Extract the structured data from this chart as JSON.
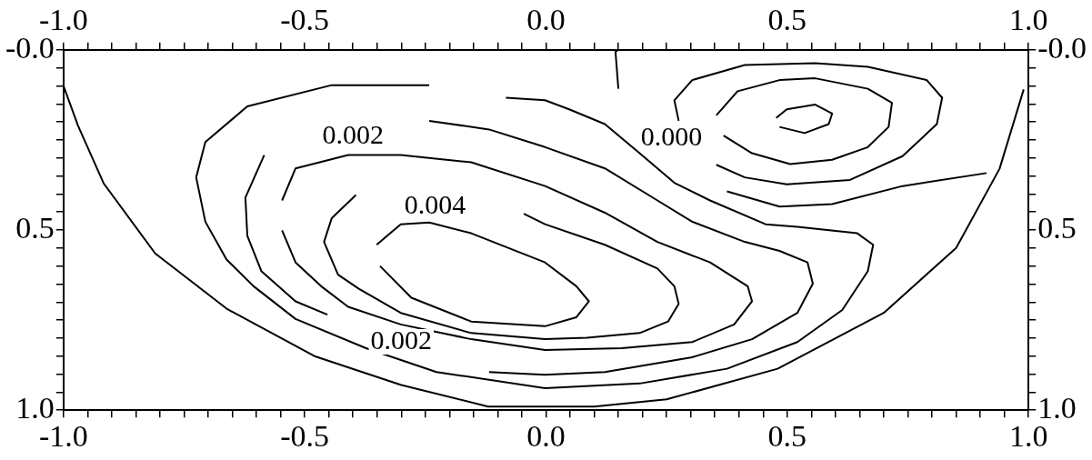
{
  "chart_data": {
    "type": "line",
    "marker": "none",
    "grid": false,
    "legend": false,
    "xlim": [
      -1,
      1
    ],
    "ylim": [
      1,
      0
    ],
    "x2lim": [
      -1,
      1
    ],
    "y2lim": [
      1,
      0
    ],
    "xticks": [
      {
        "value": -1,
        "label": "-1.0"
      },
      {
        "value": -0.95,
        "label": null
      },
      {
        "value": -0.9,
        "label": null
      },
      {
        "value": -0.85,
        "label": null
      },
      {
        "value": -0.8,
        "label": null
      },
      {
        "value": -0.75,
        "label": null
      },
      {
        "value": -0.7,
        "label": null
      },
      {
        "value": -0.65,
        "label": null
      },
      {
        "value": -0.6,
        "label": null
      },
      {
        "value": -0.55,
        "label": null
      },
      -0.5,
      {
        "value": -0.45,
        "label": null
      },
      {
        "value": -0.4,
        "label": null
      },
      {
        "value": -0.35,
        "label": null
      },
      {
        "value": -0.3,
        "label": null
      },
      {
        "value": -0.25,
        "label": null
      },
      {
        "value": -0.2,
        "label": null
      },
      {
        "value": -0.15,
        "label": null
      },
      {
        "value": -0.1,
        "label": null
      },
      {
        "value": -0.05,
        "label": null
      },
      {
        "value": 0,
        "label": "0.0"
      },
      {
        "value": 0.05,
        "label": null
      },
      {
        "value": 0.1,
        "label": null
      },
      {
        "value": 0.15,
        "label": null
      },
      {
        "value": 0.2,
        "label": null
      },
      {
        "value": 0.25,
        "label": null
      },
      {
        "value": 0.3,
        "label": null
      },
      {
        "value": 0.35,
        "label": null
      },
      {
        "value": 0.4,
        "label": null
      },
      {
        "value": 0.45,
        "label": null
      },
      0.5,
      {
        "value": 0.55,
        "label": null
      },
      {
        "value": 0.6,
        "label": null
      },
      {
        "value": 0.65,
        "label": null
      },
      {
        "value": 0.7,
        "label": null
      },
      {
        "value": 0.75,
        "label": null
      },
      {
        "value": 0.8,
        "label": null
      },
      {
        "value": 0.85,
        "label": null
      },
      {
        "value": 0.9,
        "label": null
      },
      {
        "value": 0.95,
        "label": null
      },
      {
        "value": 1,
        "label": "1.0"
      }
    ],
    "x2ticks": [
      {
        "value": -1,
        "label": "-1.0"
      },
      {
        "value": -0.95,
        "label": null
      },
      {
        "value": -0.9,
        "label": null
      },
      {
        "value": -0.85,
        "label": null
      },
      {
        "value": -0.8,
        "label": null
      },
      {
        "value": -0.75,
        "label": null
      },
      {
        "value": -0.7,
        "label": null
      },
      {
        "value": -0.65,
        "label": null
      },
      {
        "value": -0.6,
        "label": null
      },
      {
        "value": -0.55,
        "label": null
      },
      -0.5,
      {
        "value": -0.45,
        "label": null
      },
      {
        "value": -0.4,
        "label": null
      },
      {
        "value": -0.35,
        "label": null
      },
      {
        "value": -0.3,
        "label": null
      },
      {
        "value": -0.25,
        "label": null
      },
      {
        "value": -0.2,
        "label": null
      },
      {
        "value": -0.15,
        "label": null
      },
      {
        "value": -0.1,
        "label": null
      },
      {
        "value": -0.05,
        "label": null
      },
      {
        "value": 0,
        "label": "0.0"
      },
      {
        "value": 0.05,
        "label": null
      },
      {
        "value": 0.1,
        "label": null
      },
      {
        "value": 0.15,
        "label": null
      },
      {
        "value": 0.2,
        "label": null
      },
      {
        "value": 0.25,
        "label": null
      },
      {
        "value": 0.3,
        "label": null
      },
      {
        "value": 0.35,
        "label": null
      },
      {
        "value": 0.4,
        "label": null
      },
      {
        "value": 0.45,
        "label": null
      },
      0.5,
      {
        "value": 0.55,
        "label": null
      },
      {
        "value": 0.6,
        "label": null
      },
      {
        "value": 0.65,
        "label": null
      },
      {
        "value": 0.7,
        "label": null
      },
      {
        "value": 0.75,
        "label": null
      },
      {
        "value": 0.8,
        "label": null
      },
      {
        "value": 0.85,
        "label": null
      },
      {
        "value": 0.9,
        "label": null
      },
      {
        "value": 0.95,
        "label": null
      },
      {
        "value": 1,
        "label": "1.0"
      }
    ],
    "yticks": [
      {
        "value": 0,
        "label": "-0.0"
      },
      {
        "value": 0.05,
        "label": null
      },
      {
        "value": 0.1,
        "label": null
      },
      {
        "value": 0.15,
        "label": null
      },
      {
        "value": 0.2,
        "label": null
      },
      {
        "value": 0.25,
        "label": null
      },
      {
        "value": 0.3,
        "label": null
      },
      {
        "value": 0.35,
        "label": null
      },
      {
        "value": 0.4,
        "label": null
      },
      {
        "value": 0.45,
        "label": null
      },
      0.5,
      {
        "value": 0.55,
        "label": null
      },
      {
        "value": 0.6,
        "label": null
      },
      {
        "value": 0.65,
        "label": null
      },
      {
        "value": 0.7,
        "label": null
      },
      {
        "value": 0.75,
        "label": null
      },
      {
        "value": 0.8,
        "label": null
      },
      {
        "value": 0.85,
        "label": null
      },
      {
        "value": 0.9,
        "label": null
      },
      {
        "value": 0.95,
        "label": null
      },
      {
        "value": 1,
        "label": "1.0"
      }
    ],
    "y2ticks": [
      {
        "value": 0,
        "label": "-0.0"
      },
      {
        "value": 0.05,
        "label": null
      },
      {
        "value": 0.1,
        "label": null
      },
      {
        "value": 0.15,
        "label": null
      },
      {
        "value": 0.2,
        "label": null
      },
      {
        "value": 0.25,
        "label": null
      },
      {
        "value": 0.3,
        "label": null
      },
      {
        "value": 0.35,
        "label": null
      },
      {
        "value": 0.4,
        "label": null
      },
      {
        "value": 0.45,
        "label": null
      },
      0.5,
      {
        "value": 0.55,
        "label": null
      },
      {
        "value": 0.6,
        "label": null
      },
      {
        "value": 0.65,
        "label": null
      },
      {
        "value": 0.7,
        "label": null
      },
      {
        "value": 0.75,
        "label": null
      },
      {
        "value": 0.8,
        "label": null
      },
      {
        "value": 0.85,
        "label": null
      },
      {
        "value": 0.9,
        "label": null
      },
      {
        "value": 0.95,
        "label": null
      },
      {
        "value": 1,
        "label": "1.0"
      }
    ],
    "series": [
      {
        "color": "#000000",
        "x": [
          -1.0,
          -0.97,
          -0.917,
          -0.81,
          -0.66,
          -0.48,
          -0.3,
          -0.12,
          0.1,
          0.25,
          0.48,
          0.7,
          0.85,
          0.94,
          0.99
        ],
        "values": [
          0.1,
          0.21,
          0.37,
          0.565,
          0.72,
          0.85,
          0.93,
          0.99,
          0.99,
          0.97,
          0.885,
          0.73,
          0.55,
          0.33,
          0.11
        ]
      },
      {
        "color": "#000000",
        "x": [
          -0.242,
          -0.444,
          -0.619,
          -0.706,
          -0.725,
          -0.706,
          -0.662,
          -0.606,
          -0.519,
          -0.373,
          -0.227,
          -0.002,
          0.194,
          0.375,
          0.521,
          0.614,
          0.667,
          0.678,
          0.645,
          0.521,
          0.455,
          0.34,
          0.266,
          0.194,
          0.122,
          0.048,
          -0.002,
          -0.083
        ],
        "values": [
          0.098,
          0.098,
          0.157,
          0.256,
          0.354,
          0.477,
          0.582,
          0.656,
          0.747,
          0.828,
          0.894,
          0.939,
          0.926,
          0.885,
          0.811,
          0.722,
          0.614,
          0.541,
          0.509,
          0.491,
          0.484,
          0.418,
          0.369,
          0.287,
          0.206,
          0.165,
          0.14,
          0.133
        ]
      },
      {
        "color": "#000000",
        "x": [
          -0.242,
          -0.118,
          -0.002,
          0.122,
          0.231,
          0.303,
          0.412,
          0.484,
          0.542,
          0.553,
          0.521,
          0.427,
          0.303,
          0.122,
          -0.002,
          -0.118
        ],
        "values": [
          0.197,
          0.221,
          0.27,
          0.329,
          0.418,
          0.477,
          0.533,
          0.558,
          0.59,
          0.649,
          0.73,
          0.803,
          0.853,
          0.894,
          0.902,
          0.894
        ]
      },
      {
        "color": "#000000",
        "x": [
          -0.453,
          -0.519,
          -0.59,
          -0.619,
          -0.623,
          -0.584
        ],
        "values": [
          0.735,
          0.698,
          0.614,
          0.516,
          0.41,
          0.292
        ]
      },
      {
        "color": "#000000",
        "x": [
          -0.547,
          -0.519,
          -0.41,
          -0.301,
          -0.155,
          -0.002,
          0.122,
          0.231,
          0.34,
          0.418,
          0.427,
          0.39,
          0.303,
          0.157,
          -0.002,
          -0.155,
          -0.301,
          -0.41,
          -0.466,
          -0.519,
          -0.547
        ],
        "values": [
          0.418,
          0.329,
          0.292,
          0.292,
          0.312,
          0.378,
          0.452,
          0.533,
          0.59,
          0.656,
          0.698,
          0.762,
          0.811,
          0.828,
          0.833,
          0.803,
          0.762,
          0.713,
          0.656,
          0.59,
          0.501
        ]
      },
      {
        "color": "#000000",
        "x": [
          -0.046,
          -0.002,
          0.122,
          0.231,
          0.266,
          0.275,
          0.253,
          0.194,
          0.085,
          -0.002,
          -0.155,
          -0.301,
          -0.388,
          -0.431,
          -0.46,
          -0.444,
          -0.394
        ],
        "values": [
          0.455,
          0.484,
          0.541,
          0.607,
          0.656,
          0.705,
          0.754,
          0.786,
          0.799,
          0.803,
          0.786,
          0.73,
          0.663,
          0.624,
          0.533,
          0.467,
          0.403
        ]
      },
      {
        "color": "#000000",
        "x": [
          -0.351,
          -0.301,
          -0.242,
          -0.155,
          -0.002,
          0.063,
          0.089,
          0.063,
          -0.002,
          -0.155,
          -0.279,
          -0.344
        ],
        "values": [
          0.541,
          0.484,
          0.479,
          0.509,
          0.59,
          0.656,
          0.698,
          0.742,
          0.767,
          0.754,
          0.688,
          0.6
        ]
      },
      {
        "color": "#000000",
        "x": [
          0.15,
          0.144,
          0.15
        ],
        "values": [
          0.0,
          0.005,
          0.108
        ]
      },
      {
        "color": "#000000",
        "x": [
          0.353,
          0.412,
          0.499,
          0.63,
          0.739,
          0.81,
          0.821,
          0.789,
          0.667,
          0.558,
          0.412,
          0.303,
          0.266,
          0.275
        ],
        "values": [
          0.319,
          0.354,
          0.373,
          0.361,
          0.295,
          0.206,
          0.133,
          0.084,
          0.047,
          0.037,
          0.042,
          0.084,
          0.14,
          0.197
        ]
      },
      {
        "color": "#000000",
        "x": [
          0.353,
          0.397,
          0.484,
          0.558,
          0.667,
          0.717,
          0.71,
          0.667,
          0.593,
          0.506,
          0.427,
          0.368
        ],
        "values": [
          0.182,
          0.115,
          0.084,
          0.079,
          0.108,
          0.147,
          0.214,
          0.27,
          0.305,
          0.317,
          0.287,
          0.238
        ]
      },
      {
        "color": "#000000",
        "x": [
          0.477,
          0.499,
          0.558,
          0.593,
          0.586,
          0.536,
          0.484
        ],
        "values": [
          0.189,
          0.165,
          0.152,
          0.177,
          0.206,
          0.231,
          0.214
        ]
      },
      {
        "color": "#000000",
        "x": [
          0.375,
          0.484,
          0.593,
          0.739,
          0.913
        ],
        "values": [
          0.393,
          0.435,
          0.428,
          0.378,
          0.342
        ]
      }
    ],
    "annotations": [
      "0.002",
      "0.004",
      "0.002",
      "0.000"
    ]
  }
}
